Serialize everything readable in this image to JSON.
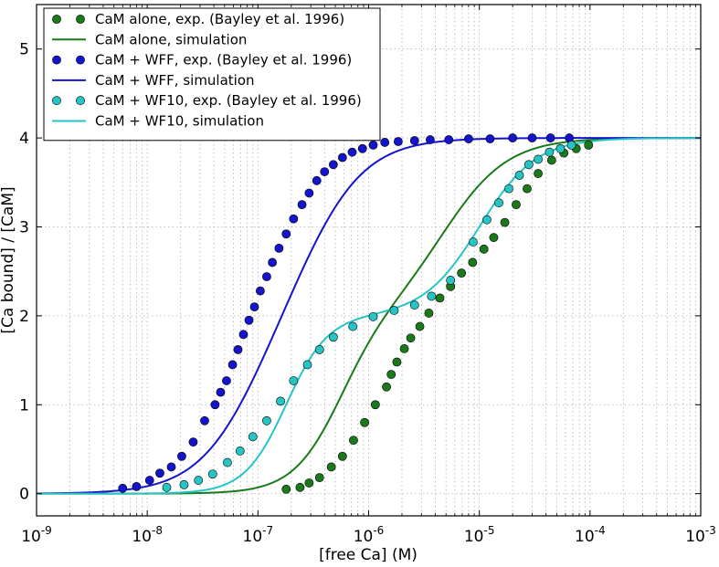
{
  "chart_data": {
    "type": "scatter",
    "xlabel": "[free Ca] (M)",
    "ylabel": "[Ca bound] / [CaM]",
    "x_scale": "log",
    "xlim": [
      1e-09,
      0.001
    ],
    "ylim": [
      -0.25,
      5.5
    ],
    "x_ticks": [
      {
        "value": 1e-09,
        "base": "10",
        "exp": "-9"
      },
      {
        "value": 1e-08,
        "base": "10",
        "exp": "-8"
      },
      {
        "value": 1e-07,
        "base": "10",
        "exp": "-7"
      },
      {
        "value": 1e-06,
        "base": "10",
        "exp": "-6"
      },
      {
        "value": 1e-05,
        "base": "10",
        "exp": "-5"
      },
      {
        "value": 0.0001,
        "base": "10",
        "exp": "-4"
      },
      {
        "value": 0.001,
        "base": "10",
        "exp": "-3"
      }
    ],
    "y_ticks": [
      {
        "value": 0,
        "label": "0"
      },
      {
        "value": 1,
        "label": "1"
      },
      {
        "value": 2,
        "label": "2"
      },
      {
        "value": 3,
        "label": "3"
      },
      {
        "value": 4,
        "label": "4"
      },
      {
        "value": 5,
        "label": "5"
      }
    ],
    "grid": true,
    "legend_position": "top-left",
    "series": [
      {
        "name": "CaM alone, exp. (Bayley et al. 1996)",
        "kind": "markers",
        "color": "#1a7a1a",
        "x": [
          1.8e-07,
          2.4e-07,
          2.9e-07,
          3.6e-07,
          4.6e-07,
          5.8e-07,
          7.3e-07,
          9.2e-07,
          1.15e-06,
          1.45e-06,
          1.6e-06,
          1.8e-06,
          2.1e-06,
          2.4e-06,
          2.9e-06,
          3.5e-06,
          4.4e-06,
          5.5e-06,
          6.9e-06,
          8.7e-06,
          1.1e-05,
          1.35e-05,
          1.7e-05,
          2.15e-05,
          2.7e-05,
          3.4e-05,
          4.5e-05,
          5.8e-05,
          7.5e-05,
          9.7e-05
        ],
        "y": [
          0.05,
          0.07,
          0.12,
          0.18,
          0.3,
          0.42,
          0.6,
          0.8,
          1.0,
          1.2,
          1.34,
          1.48,
          1.63,
          1.75,
          1.88,
          2.03,
          2.2,
          2.33,
          2.48,
          2.6,
          2.75,
          2.88,
          3.05,
          3.25,
          3.43,
          3.6,
          3.75,
          3.83,
          3.88,
          3.92
        ]
      },
      {
        "name": "CaM alone, simulation",
        "kind": "line",
        "color": "#1a7a1a",
        "model": {
          "K1": 5.5e-07,
          "K2": 5e-06,
          "nA": 2.0,
          "nB": 1.5
        }
      },
      {
        "name": "CaM + WFF, exp. (Bayley et al. 1996)",
        "kind": "markers",
        "color": "#1414cc",
        "x": [
          6e-09,
          8e-09,
          1.05e-08,
          1.3e-08,
          1.65e-08,
          2.05e-08,
          2.6e-08,
          3.3e-08,
          4.1e-08,
          4.6e-08,
          5.2e-08,
          5.9e-08,
          6.6e-08,
          7.4e-08,
          8.3e-08,
          9.3e-08,
          1.05e-07,
          1.2e-07,
          1.35e-07,
          1.55e-07,
          1.8e-07,
          2.1e-07,
          2.5e-07,
          2.9e-07,
          3.4e-07,
          4e-07,
          4.8e-07,
          5.8e-07,
          7.1e-07,
          8.8e-07,
          1.1e-06,
          1.4e-06,
          1.85e-06,
          2.6e-06,
          3.6e-06,
          5.3e-06,
          8e-06,
          1.25e-05,
          2e-05,
          3e-05,
          4.4e-05,
          6.5e-05
        ],
        "y": [
          0.06,
          0.08,
          0.15,
          0.23,
          0.3,
          0.42,
          0.58,
          0.82,
          1.0,
          1.14,
          1.27,
          1.45,
          1.62,
          1.79,
          1.95,
          2.1,
          2.28,
          2.44,
          2.6,
          2.76,
          2.92,
          3.09,
          3.25,
          3.38,
          3.52,
          3.62,
          3.7,
          3.78,
          3.84,
          3.88,
          3.92,
          3.95,
          3.96,
          3.97,
          3.98,
          3.98,
          3.99,
          3.99,
          4.0,
          4.0,
          4.0,
          4.0
        ]
      },
      {
        "name": "CaM + WFF, simulation",
        "kind": "line",
        "color": "#1414cc",
        "model": {
          "K1": 9e-08,
          "K2": 3e-07,
          "nA": 1.5,
          "nB": 1.5
        }
      },
      {
        "name": "CaM + WF10, exp. (Bayley et al. 1996)",
        "kind": "markers",
        "color": "#26c4c4",
        "x": [
          1.5e-08,
          2.15e-08,
          2.9e-08,
          3.9e-08,
          5.3e-08,
          6.9e-08,
          9e-08,
          1.2e-07,
          1.6e-07,
          2.1e-07,
          2.8e-07,
          3.6e-07,
          4.8e-07,
          7.2e-07,
          1.1e-06,
          1.7e-06,
          2.6e-06,
          3.7e-06,
          5.5e-06,
          8.8e-06,
          1.17e-05,
          1.5e-05,
          1.85e-05,
          2.3e-05,
          2.8e-05,
          3.4e-05,
          4.3e-05,
          5.4e-05,
          6.8e-05
        ],
        "y": [
          0.07,
          0.1,
          0.15,
          0.22,
          0.35,
          0.48,
          0.64,
          0.82,
          1.04,
          1.27,
          1.45,
          1.62,
          1.76,
          1.88,
          1.99,
          2.06,
          2.12,
          2.22,
          2.4,
          2.83,
          3.08,
          3.27,
          3.43,
          3.58,
          3.7,
          3.76,
          3.84,
          3.88,
          3.92
        ]
      },
      {
        "name": "CaM + WF10, simulation",
        "kind": "line",
        "color": "#26c4c4",
        "model": {
          "K1": 1.8e-07,
          "K2": 1e-05,
          "nA": 2.3,
          "nB": 1.7
        }
      }
    ]
  }
}
